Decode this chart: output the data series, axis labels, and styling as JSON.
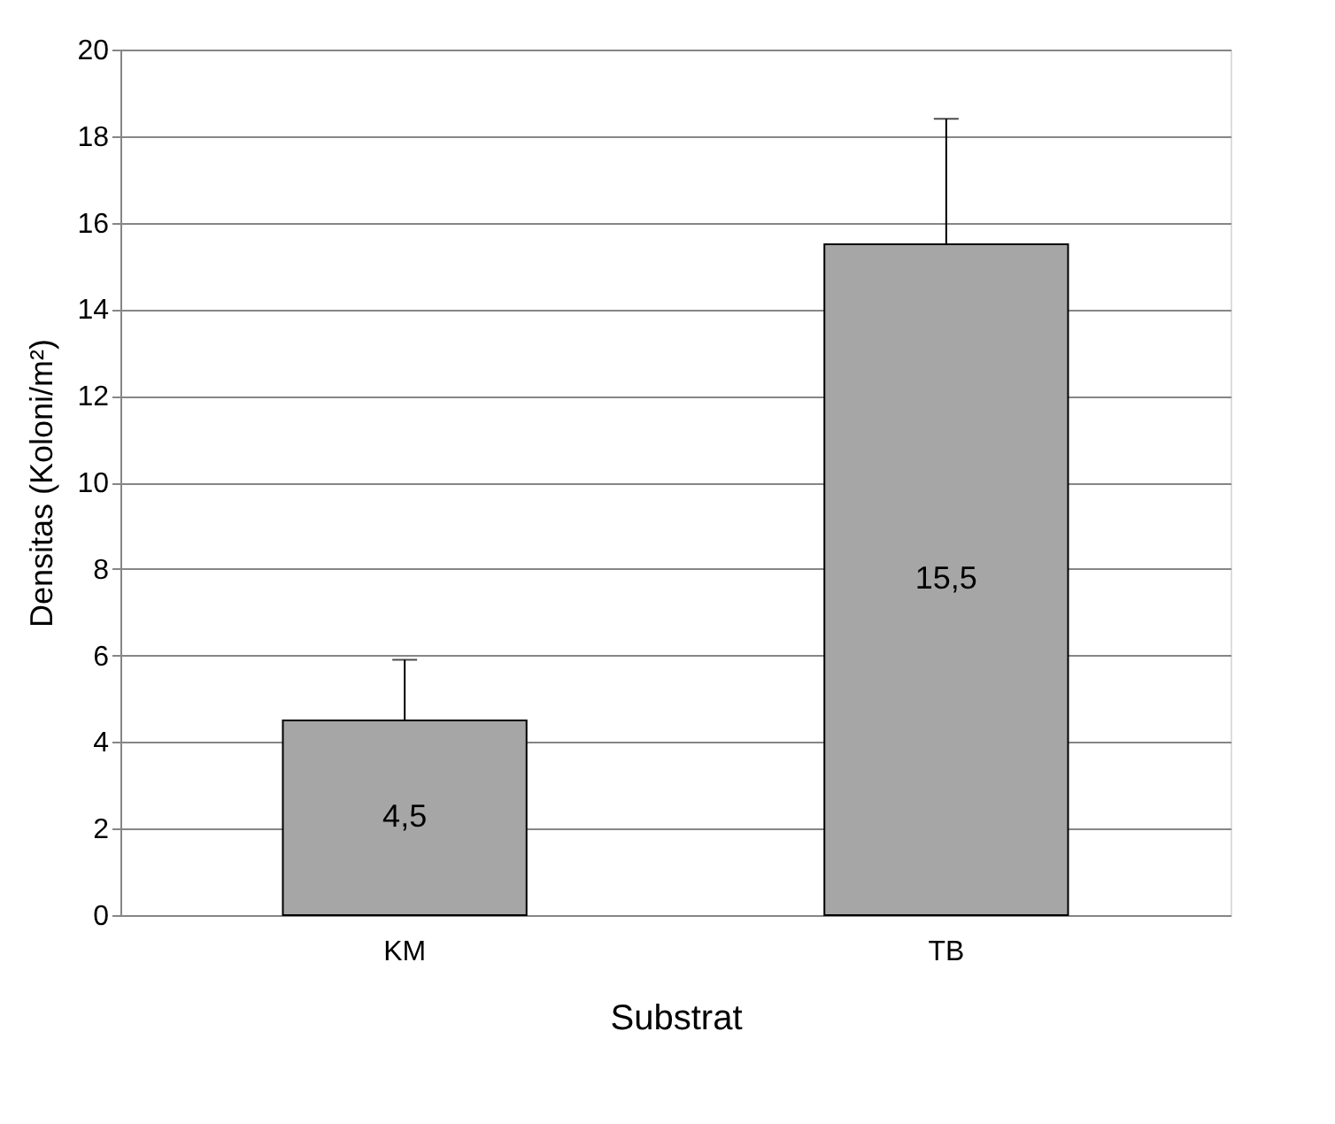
{
  "chart_data": {
    "type": "bar",
    "xlabel": "Substrat",
    "ylabel": "Densitas (Koloni/m²)",
    "categories": [
      "KM",
      "TB"
    ],
    "values": [
      4.5,
      15.5
    ],
    "color": "#a6a6a6",
    "errors": [
      [
        4.5,
        5.9
      ],
      [
        15.5,
        18.4
      ]
    ],
    "value_labels": [
      "4,5",
      "15,5"
    ],
    "ylim": [
      0,
      20
    ],
    "yticks": [
      0,
      2,
      4,
      6,
      8,
      10,
      12,
      14,
      16,
      18,
      20
    ],
    "grid": "y"
  }
}
